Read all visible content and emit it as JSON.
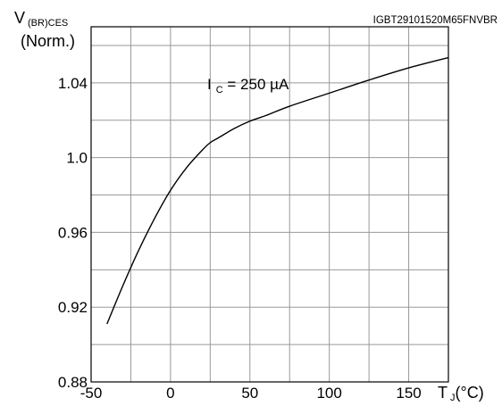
{
  "chart_data": {
    "type": "line",
    "part_number": "IGBT29101520M65FNVBR",
    "ylabel": {
      "main": "V",
      "subscript": "(BR)CES",
      "line2": "(Norm.)"
    },
    "xlabel": {
      "main": "T",
      "subscript": "J",
      "unit": "(°C)"
    },
    "annotation": {
      "main": "I",
      "subscript": "C",
      "value": " = 250 µA"
    },
    "xlim": [
      -50,
      175
    ],
    "ylim": [
      0.88,
      1.07
    ],
    "x_ticks": [
      -50,
      0,
      50,
      100,
      150
    ],
    "x_tick_labels": [
      "-50",
      "0",
      "50",
      "100",
      "150"
    ],
    "y_ticks": [
      0.88,
      0.92,
      0.96,
      1.0,
      1.04
    ],
    "y_tick_labels": [
      "0.88",
      "0.92",
      "0.96",
      "1.0",
      "1.04"
    ],
    "grid": true,
    "x_grid_step": 25,
    "y_grid_step": 0.02,
    "series": [
      {
        "x": [
          -40,
          -30,
          -20,
          -10,
          0,
          10,
          20,
          25,
          30,
          40,
          50,
          60,
          75,
          100,
          125,
          150,
          175
        ],
        "y": [
          0.911,
          0.9315,
          0.9505,
          0.9675,
          0.9825,
          0.9945,
          1.004,
          1.008,
          1.0105,
          1.0155,
          1.0195,
          1.0225,
          1.0275,
          1.0345,
          1.0415,
          1.048,
          1.0535
        ]
      }
    ],
    "colors": {
      "line": "#000000",
      "grid": "#999999",
      "frame": "#000000"
    }
  }
}
